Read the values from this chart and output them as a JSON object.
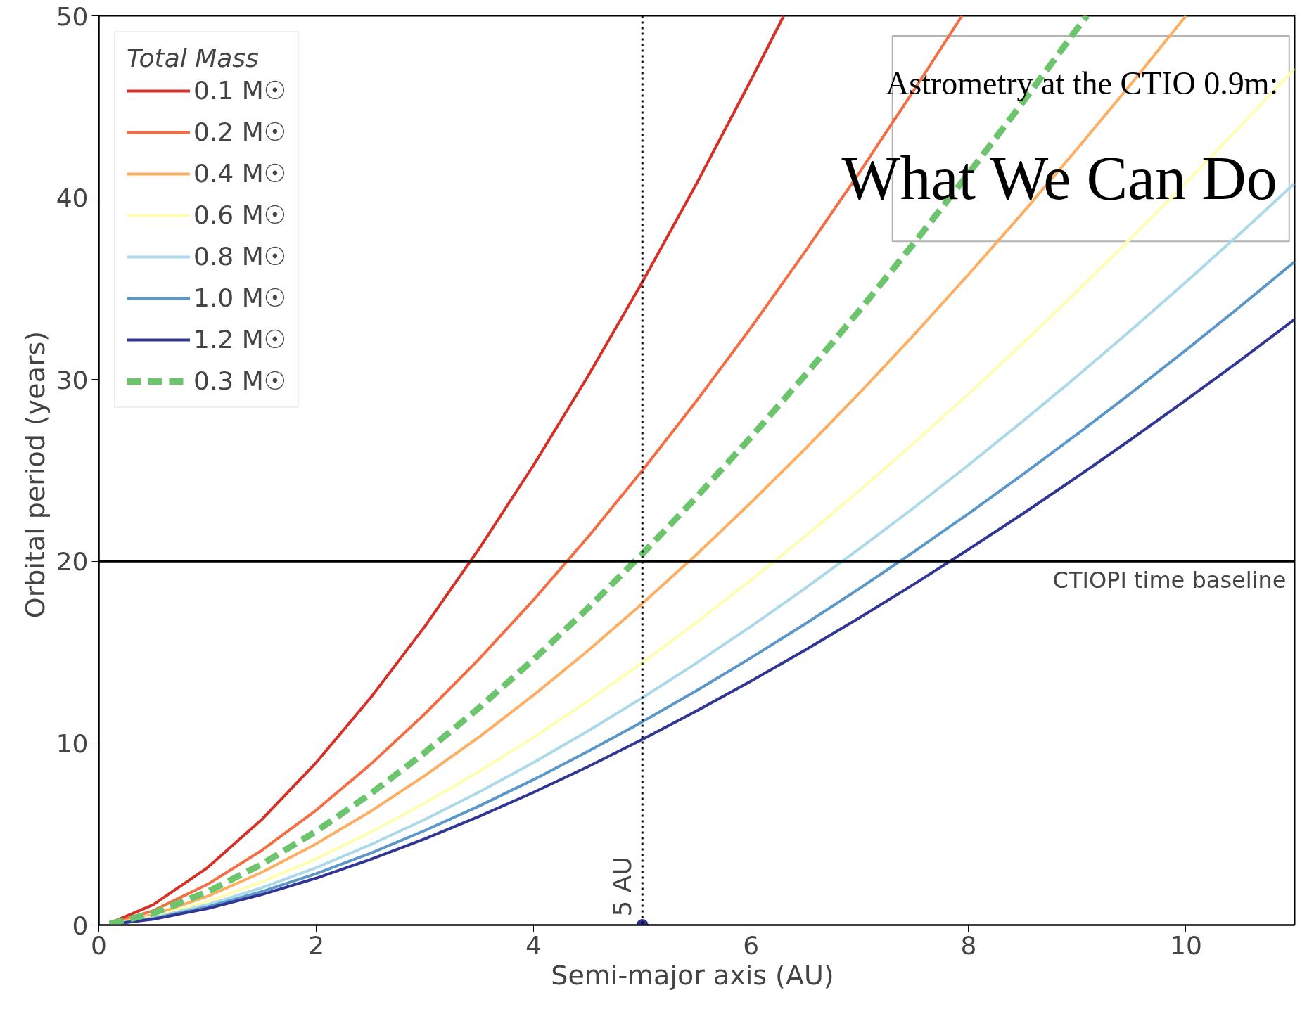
{
  "chart_data": {
    "type": "line",
    "title": "Astrometry at the CTIO 0.9m:",
    "subtitle": "What We Can Do",
    "xlabel": "Semi-major axis  (AU)",
    "ylabel": "Orbital period  (years)",
    "legend_title": "Total Mass",
    "xlim": [
      0,
      11
    ],
    "ylim": [
      0,
      50
    ],
    "xticks": [
      0,
      2,
      4,
      6,
      8,
      10
    ],
    "yticks": [
      0,
      10,
      20,
      30,
      40,
      50
    ],
    "grid": false,
    "legend": "top left",
    "x": [
      0.1,
      0.5,
      1,
      1.5,
      2,
      2.5,
      3,
      3.5,
      4,
      4.5,
      5,
      5.5,
      6,
      6.5,
      7,
      7.5,
      8,
      8.5,
      9,
      9.5,
      10,
      10.5,
      11
    ],
    "series": [
      {
        "name": "0.1 M☉",
        "color": "#d73027",
        "line_style": "solid",
        "x": [
          0.1,
          0.5,
          1,
          1.5,
          2,
          2.5,
          3,
          3.5,
          4,
          4.5,
          5,
          5.5,
          6,
          6.3
        ],
        "values": [
          0.1,
          1.12,
          3.16,
          5.81,
          8.94,
          12.5,
          16.43,
          20.71,
          25.3,
          30.19,
          35.36,
          40.79,
          46.48,
          50.0
        ]
      },
      {
        "name": "0.2 M☉",
        "color": "#f46d43",
        "line_style": "solid",
        "x": [
          0.1,
          0.5,
          1,
          1.5,
          2,
          2.5,
          3,
          3.5,
          4,
          4.5,
          5,
          5.5,
          6,
          6.5,
          7,
          7.5,
          7.94
        ],
        "values": [
          0.07,
          0.79,
          2.24,
          4.11,
          6.32,
          8.84,
          11.62,
          14.64,
          17.89,
          21.34,
          25.0,
          28.84,
          32.86,
          37.06,
          41.41,
          45.93,
          50.0
        ]
      },
      {
        "name": "0.4 M☉",
        "color": "#fdae61",
        "line_style": "solid",
        "x": [
          0.1,
          0.5,
          1,
          1.5,
          2,
          2.5,
          3,
          3.5,
          4,
          4.5,
          5,
          5.5,
          6,
          6.5,
          7,
          7.5,
          8,
          8.5,
          9,
          9.5,
          10
        ],
        "values": [
          0.05,
          0.56,
          1.58,
          2.9,
          4.47,
          6.25,
          8.22,
          10.35,
          12.65,
          15.09,
          17.68,
          20.39,
          23.24,
          26.2,
          29.28,
          32.47,
          35.78,
          39.18,
          42.69,
          46.29,
          50.0
        ]
      },
      {
        "name": "0.6 M☉",
        "color": "#fefeb0",
        "line_style": "solid",
        "values": [
          0.04,
          0.46,
          1.29,
          2.37,
          3.65,
          5.1,
          6.71,
          8.45,
          10.33,
          12.32,
          14.43,
          16.65,
          18.97,
          21.39,
          23.91,
          26.52,
          29.21,
          31.99,
          34.86,
          37.8,
          40.82,
          43.92,
          47.1
        ]
      },
      {
        "name": "0.8 M☉",
        "color": "#abd9e9",
        "line_style": "solid",
        "values": [
          0.04,
          0.4,
          1.12,
          2.05,
          3.16,
          4.42,
          5.81,
          7.32,
          8.94,
          10.67,
          12.5,
          14.42,
          16.43,
          18.53,
          20.71,
          22.96,
          25.3,
          27.71,
          30.19,
          32.74,
          35.36,
          38.04,
          40.79
        ]
      },
      {
        "name": "1.0 M☉",
        "color": "#5b97c9",
        "line_style": "solid",
        "values": [
          0.03,
          0.35,
          1.0,
          1.84,
          2.83,
          3.95,
          5.2,
          6.55,
          8.0,
          9.55,
          11.18,
          12.9,
          14.7,
          16.57,
          18.52,
          20.54,
          22.63,
          24.78,
          27.0,
          29.28,
          31.62,
          34.02,
          36.48
        ]
      },
      {
        "name": "1.2 M☉",
        "color": "#313695",
        "line_style": "solid",
        "values": [
          0.03,
          0.32,
          0.91,
          1.68,
          2.58,
          3.61,
          4.74,
          5.98,
          7.3,
          8.71,
          10.21,
          11.78,
          13.42,
          15.13,
          16.91,
          18.75,
          20.66,
          22.62,
          24.65,
          26.73,
          28.87,
          31.06,
          33.31
        ]
      },
      {
        "name": "0.3 M☉",
        "color": "#6cc46c",
        "line_style": "dashed",
        "x": [
          0.1,
          0.5,
          1,
          1.5,
          2,
          2.5,
          3,
          3.5,
          4,
          4.5,
          5,
          5.5,
          6,
          6.5,
          7,
          7.5,
          8,
          8.5,
          9,
          9.09
        ],
        "values": [
          0.06,
          0.65,
          1.83,
          3.35,
          5.16,
          7.22,
          9.49,
          11.96,
          14.61,
          17.43,
          20.41,
          23.55,
          26.84,
          30.26,
          33.82,
          37.51,
          41.32,
          45.25,
          49.3,
          50.0
        ]
      },
      {
        "type": "scatter",
        "marker": "circle",
        "color": "#2b2f8f",
        "x": [
          5
        ],
        "values": [
          0
        ]
      }
    ],
    "ref_lines": [
      {
        "axis": "y",
        "value": 20,
        "label": "CTIOPI time baseline",
        "color": "#000000",
        "line_style": "solid"
      },
      {
        "axis": "x",
        "value": 5,
        "label": "5 AU",
        "color": "#000000",
        "line_style": "dotted"
      }
    ]
  }
}
